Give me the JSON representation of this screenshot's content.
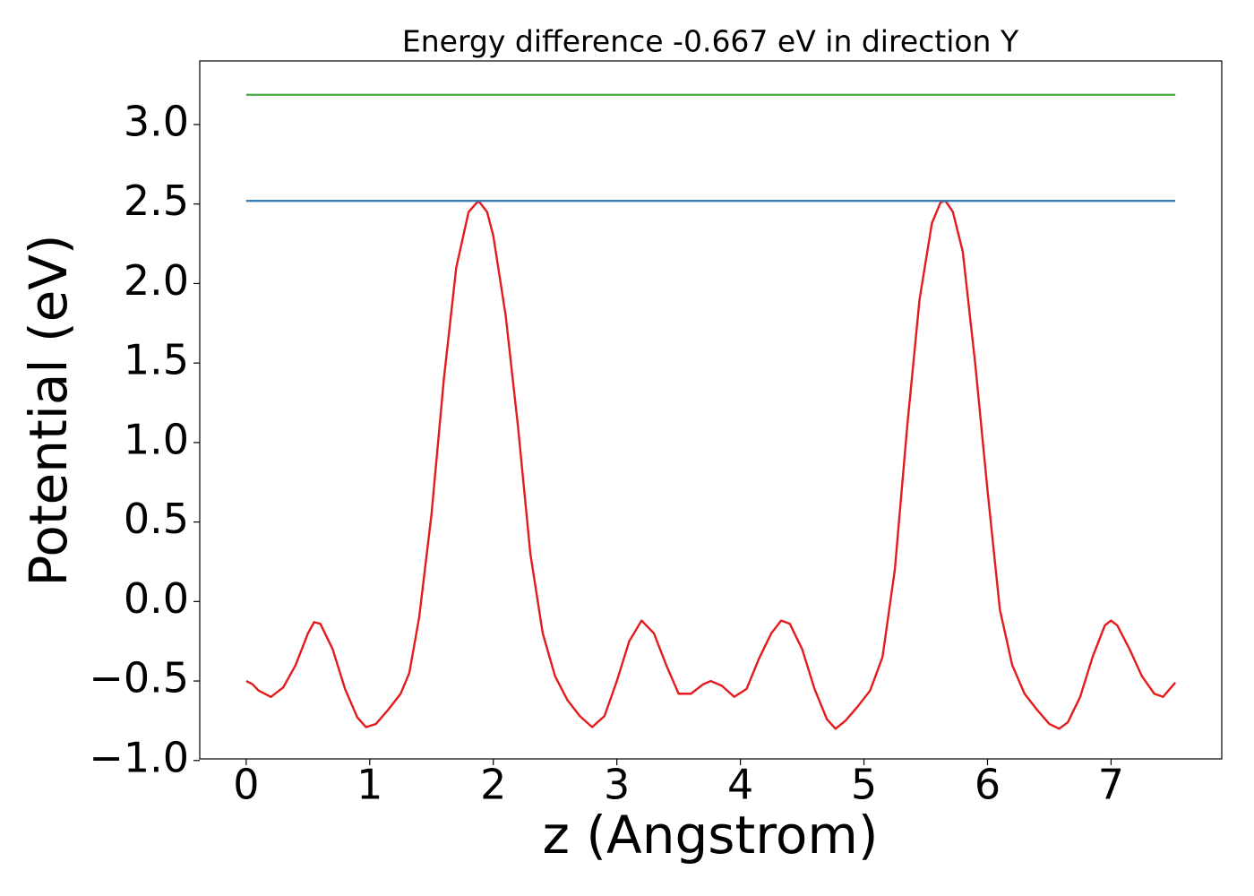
{
  "chart_data": {
    "type": "line",
    "title": "Energy difference -0.667 eV in direction Y",
    "x_label": "z (Angstrom)",
    "y_label": "Potential (eV)",
    "xlim": [
      -0.376,
      7.896
    ],
    "ylim": [
      -0.99,
      3.4
    ],
    "xticks": [
      0,
      1,
      2,
      3,
      4,
      5,
      6,
      7
    ],
    "yticks": [
      {
        "value": -1.0,
        "label": "−1.0"
      },
      {
        "value": -0.5,
        "label": "−0.5"
      },
      {
        "value": 0.0,
        "label": "0.0"
      },
      0.5,
      {
        "value": 1.0,
        "label": "1.0"
      },
      1.5,
      {
        "value": 2.0,
        "label": "2.0"
      },
      2.5,
      {
        "value": 3.0,
        "label": "3.0"
      }
    ],
    "grid": false,
    "series": [
      {
        "color": "#e41a1c",
        "x": [
          0,
          0.05,
          0.1,
          0.2,
          0.3,
          0.4,
          0.5,
          0.55,
          0.6,
          0.7,
          0.8,
          0.9,
          0.97,
          1.05,
          1.15,
          1.25,
          1.32,
          1.4,
          1.5,
          1.6,
          1.7,
          1.8,
          1.88,
          1.95,
          2.0,
          2.1,
          2.2,
          2.3,
          2.4,
          2.5,
          2.6,
          2.7,
          2.8,
          2.9,
          3.0,
          3.1,
          3.2,
          3.3,
          3.4,
          3.5,
          3.6,
          3.7,
          3.76,
          3.85,
          3.95,
          4.05,
          4.15,
          4.25,
          4.33,
          4.4,
          4.5,
          4.6,
          4.7,
          4.77,
          4.85,
          4.95,
          5.05,
          5.15,
          5.25,
          5.35,
          5.45,
          5.55,
          5.62,
          5.66,
          5.72,
          5.8,
          5.9,
          6.0,
          6.1,
          6.2,
          6.3,
          6.4,
          6.5,
          6.58,
          6.65,
          6.75,
          6.85,
          6.95,
          7.0,
          7.05,
          7.15,
          7.25,
          7.35,
          7.42,
          7.52
        ],
        "values": [
          -0.5,
          -0.52,
          -0.56,
          -0.6,
          -0.54,
          -0.4,
          -0.2,
          -0.13,
          -0.14,
          -0.3,
          -0.55,
          -0.73,
          -0.79,
          -0.77,
          -0.68,
          -0.58,
          -0.45,
          -0.1,
          0.55,
          1.4,
          2.1,
          2.45,
          2.52,
          2.45,
          2.3,
          1.8,
          1.1,
          0.3,
          -0.2,
          -0.47,
          -0.62,
          -0.72,
          -0.79,
          -0.72,
          -0.5,
          -0.25,
          -0.12,
          -0.2,
          -0.4,
          -0.58,
          -0.58,
          -0.52,
          -0.5,
          -0.53,
          -0.6,
          -0.55,
          -0.36,
          -0.2,
          -0.12,
          -0.14,
          -0.3,
          -0.55,
          -0.74,
          -0.8,
          -0.75,
          -0.66,
          -0.56,
          -0.35,
          0.2,
          1.1,
          1.9,
          2.38,
          2.51,
          2.52,
          2.45,
          2.2,
          1.5,
          0.7,
          -0.05,
          -0.4,
          -0.58,
          -0.68,
          -0.77,
          -0.8,
          -0.76,
          -0.6,
          -0.35,
          -0.15,
          -0.12,
          -0.15,
          -0.3,
          -0.47,
          -0.58,
          -0.6,
          -0.51
        ]
      },
      {
        "color": "#377eb8",
        "x": [
          0,
          7.52
        ],
        "values": [
          2.52,
          2.52
        ]
      },
      {
        "color": "#4daf4a",
        "x": [
          0,
          7.52
        ],
        "values": [
          3.187,
          3.187
        ]
      }
    ]
  }
}
